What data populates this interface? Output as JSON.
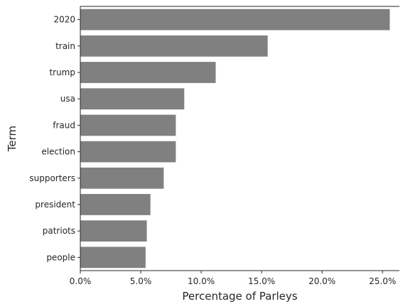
{
  "chart_data": {
    "type": "bar",
    "orientation": "horizontal",
    "categories": [
      "2020",
      "train",
      "trump",
      "usa",
      "fraud",
      "election",
      "supporters",
      "president",
      "patriots",
      "people"
    ],
    "values": [
      25.6,
      15.5,
      11.2,
      8.6,
      7.9,
      7.9,
      6.9,
      5.8,
      5.5,
      5.4
    ],
    "xlabel": "Percentage of Parleys",
    "ylabel": "Term",
    "xlim": [
      0,
      26.4
    ],
    "x_ticks": [
      0,
      5,
      10,
      15,
      20,
      25
    ],
    "x_tick_labels": [
      "0.0%",
      "5.0%",
      "10.0%",
      "15.0%",
      "20.0%",
      "25.0%"
    ],
    "grid": false,
    "bar_color": "#808080"
  }
}
